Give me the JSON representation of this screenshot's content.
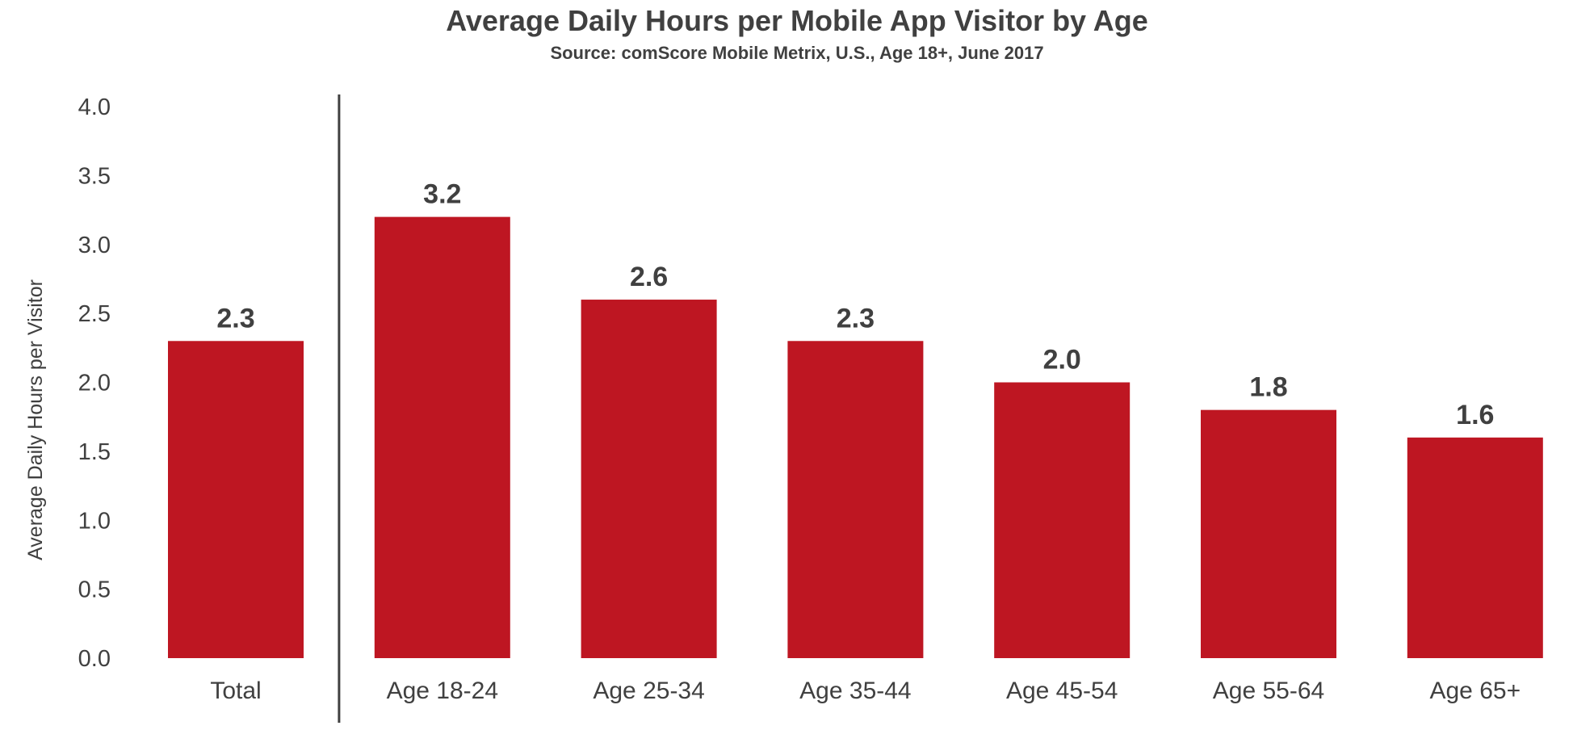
{
  "chart_data": {
    "type": "bar",
    "title": "Average Daily Hours per Mobile App Visitor by Age",
    "subtitle": "Source: comScore Mobile Metrix, U.S., Age 18+, June 2017",
    "xlabel": "",
    "ylabel": "Average Daily Hours per Visitor",
    "ylim": [
      0,
      4
    ],
    "yticks": [
      "0.0",
      "0.5",
      "1.0",
      "1.5",
      "2.0",
      "2.5",
      "3.0",
      "3.5",
      "4.0"
    ],
    "categories": [
      "Total",
      "Age 18-24",
      "Age 25-34",
      "Age 35-44",
      "Age 45-54",
      "Age 55-64",
      "Age 65+"
    ],
    "values": [
      2.3,
      3.2,
      2.6,
      2.3,
      2.0,
      1.8,
      1.6
    ],
    "value_labels": [
      "2.3",
      "3.2",
      "2.6",
      "2.3",
      "2.0",
      "1.8",
      "1.6"
    ],
    "grid": false,
    "separator_after_category": "Total",
    "colors": {
      "bar": "#BE1622",
      "text": "#404040",
      "separator": "#404040"
    }
  }
}
